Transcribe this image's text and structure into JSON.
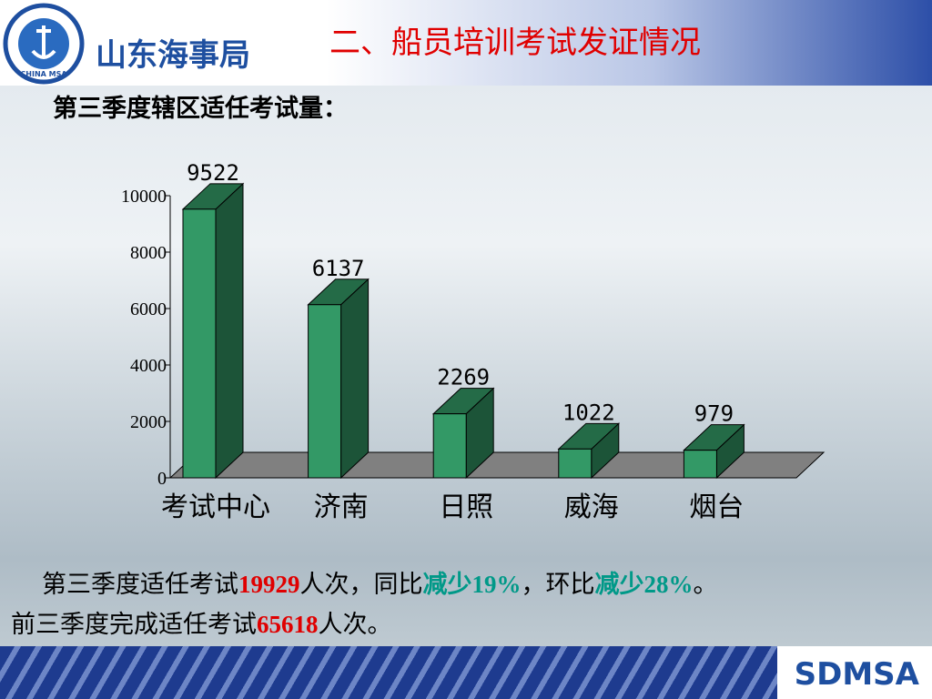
{
  "slide": {
    "org_name": "山东海事局",
    "logo_text": "CHINA MSA",
    "title": "二、船员培训考试发证情况",
    "subtitle": "第三季度辖区适任考试量：",
    "paragraphs": [
      {
        "runs": [
          {
            "text": "第三季度适任考试",
            "color": "#000000"
          },
          {
            "text": "19929",
            "color": "#e00000"
          },
          {
            "text": "人次，同比",
            "color": "#000000"
          },
          {
            "text": "减少19%",
            "color": "#009988"
          },
          {
            "text": "，环比",
            "color": "#000000"
          },
          {
            "text": "减少28%",
            "color": "#009988"
          },
          {
            "text": "。",
            "color": "#000000"
          }
        ]
      },
      {
        "runs": [
          {
            "text": "前三季度完成适任考试",
            "color": "#000000"
          },
          {
            "text": "65618",
            "color": "#e00000"
          },
          {
            "text": "人次。",
            "color": "#000000"
          }
        ]
      }
    ],
    "footer": "SDMSA"
  },
  "chart_data": {
    "type": "bar3d",
    "categories": [
      "考试中心",
      "济南",
      "日照",
      "威海",
      "烟台"
    ],
    "values": [
      9522,
      6137,
      2269,
      1022,
      979
    ],
    "color": "#339966",
    "ylim": [
      0,
      10000
    ],
    "yticks": [
      0,
      2000,
      4000,
      6000,
      8000,
      10000
    ]
  }
}
